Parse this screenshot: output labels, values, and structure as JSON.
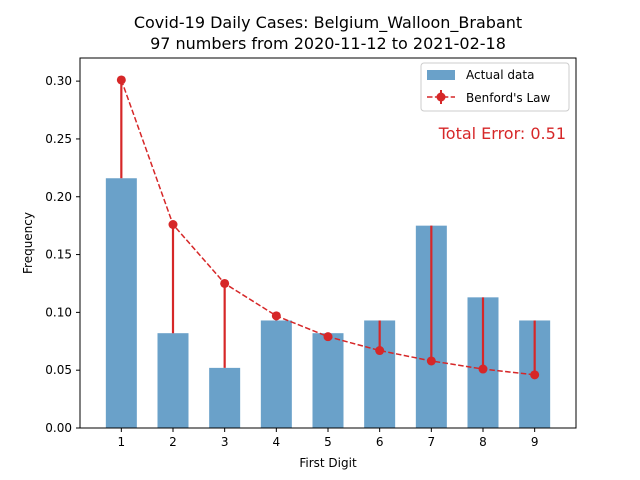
{
  "chart_data": {
    "type": "bar",
    "title_line1": "Covid-19 Daily Cases: Belgium_Walloon_Brabant",
    "title_line2": "97 numbers from 2020-11-12 to 2021-02-18",
    "xlabel": "First Digit",
    "ylabel": "Frequency",
    "categories": [
      "1",
      "2",
      "3",
      "4",
      "5",
      "6",
      "7",
      "8",
      "9"
    ],
    "x": [
      1,
      2,
      3,
      4,
      5,
      6,
      7,
      8,
      9
    ],
    "ylim": [
      0,
      0.32
    ],
    "yticks": [
      0.0,
      0.05,
      0.1,
      0.15,
      0.2,
      0.25,
      0.3
    ],
    "ytick_labels": [
      "0.00",
      "0.05",
      "0.10",
      "0.15",
      "0.20",
      "0.25",
      "0.30"
    ],
    "series": [
      {
        "name": "Actual data",
        "type": "bar",
        "values": [
          0.216,
          0.082,
          0.052,
          0.093,
          0.082,
          0.093,
          0.175,
          0.113,
          0.093
        ]
      },
      {
        "name": "Benford's Law",
        "type": "line",
        "values": [
          0.301,
          0.176,
          0.125,
          0.097,
          0.079,
          0.067,
          0.058,
          0.051,
          0.046
        ]
      }
    ],
    "legend_position": "top-right",
    "annotation": "Total Error: 0.51",
    "colors": {
      "bar": "#6aa1c9",
      "benford": "#d62728",
      "error_text": "#d62728"
    }
  }
}
